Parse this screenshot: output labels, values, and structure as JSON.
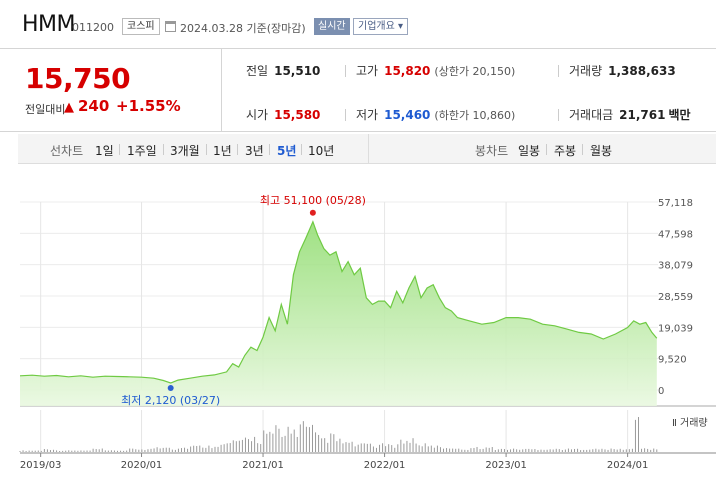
{
  "stock": {
    "name": "HMM",
    "code": "011200",
    "market": "코스피",
    "date_text": "2024.03.28 기준(장마감)",
    "realtime_label": "실시간",
    "company_label": "기업개요 ▾"
  },
  "price": {
    "current": "15,750",
    "change_label": "전일대비",
    "change_arrow": "▲",
    "change_value": "240",
    "change_pct": "+1.55%"
  },
  "stats": {
    "prev_close_label": "전일",
    "prev_close": "15,510",
    "high_label": "고가",
    "high": "15,820",
    "upper_limit": "(상한가 20,150)",
    "volume_label": "거래량",
    "volume": "1,388,633",
    "open_label": "시가",
    "open": "15,580",
    "low_label": "저가",
    "low": "15,460",
    "lower_limit": "(하한가 10,860)",
    "amount_label": "거래대금",
    "amount": "21,761",
    "amount_unit": "백만"
  },
  "periods": {
    "line_chart_label": "선차트",
    "line_buttons": [
      "1일",
      "1주일",
      "3개월",
      "1년",
      "3년",
      "5년",
      "10년"
    ],
    "active": "5년",
    "candle_chart_label": "봉차트",
    "candle_buttons": [
      "일봉",
      "주봉",
      "월봉"
    ]
  },
  "chart_data": {
    "type": "area",
    "y_ticks": [
      "57,118",
      "47,598",
      "38,079",
      "28,559",
      "19,039",
      "9,520",
      "0"
    ],
    "ylim": [
      0,
      57118
    ],
    "x_ticks": [
      "2019/03",
      "2020/01",
      "2021/01",
      "2022/01",
      "2023/01",
      "2024/01"
    ],
    "x_tick_years": [
      2019.17,
      2020.0,
      2021.0,
      2022.0,
      2023.0,
      2024.0
    ],
    "x_range": [
      2019.0,
      2024.25
    ],
    "max_annotation": "최고 51,100 (05/28)",
    "min_annotation": "최저 2,120 (03/27)",
    "max_point": {
      "x": 2021.41,
      "y": 51100
    },
    "min_point": {
      "x": 2020.24,
      "y": 2120
    },
    "volume_label": "거래량",
    "series": [
      {
        "x": [
          2019.0,
          2019.1,
          2019.2,
          2019.3,
          2019.4,
          2019.5,
          2019.6,
          2019.7,
          2019.8,
          2019.9,
          2020.0,
          2020.1,
          2020.18,
          2020.24,
          2020.3,
          2020.4,
          2020.5,
          2020.6,
          2020.7,
          2020.75,
          2020.8,
          2020.85,
          2020.9,
          2020.95,
          2021.0,
          2021.05,
          2021.1,
          2021.15,
          2021.2,
          2021.25,
          2021.3,
          2021.35,
          2021.41,
          2021.45,
          2021.5,
          2021.55,
          2021.6,
          2021.65,
          2021.7,
          2021.75,
          2021.8,
          2021.85,
          2021.9,
          2021.95,
          2022.0,
          2022.05,
          2022.1,
          2022.15,
          2022.2,
          2022.25,
          2022.3,
          2022.35,
          2022.4,
          2022.45,
          2022.5,
          2022.55,
          2022.6,
          2022.7,
          2022.8,
          2022.9,
          2023.0,
          2023.1,
          2023.2,
          2023.3,
          2023.4,
          2023.5,
          2023.6,
          2023.7,
          2023.8,
          2023.9,
          2024.0,
          2024.05,
          2024.1,
          2024.15,
          2024.2,
          2024.24
        ],
        "y": [
          4300,
          4500,
          4200,
          4400,
          4000,
          4300,
          3900,
          4200,
          4100,
          4000,
          3900,
          3600,
          2900,
          2120,
          3000,
          3600,
          4200,
          4600,
          5500,
          8000,
          7000,
          10500,
          13000,
          12000,
          16000,
          22000,
          18000,
          26000,
          20000,
          35000,
          42000,
          46000,
          51100,
          47000,
          43000,
          41000,
          42000,
          36000,
          39000,
          35000,
          37000,
          28000,
          26000,
          27000,
          27000,
          25000,
          30000,
          26500,
          31000,
          34500,
          28000,
          31000,
          32000,
          28000,
          25000,
          24000,
          22000,
          21000,
          20000,
          20500,
          22000,
          22000,
          21500,
          20000,
          19500,
          18500,
          17500,
          17000,
          15500,
          17000,
          19000,
          21000,
          20000,
          20500,
          17500,
          15750
        ]
      }
    ],
    "volume_y": [
      1,
      1,
      2,
      1,
      1,
      1,
      2,
      1,
      1,
      2,
      2,
      3,
      4,
      2,
      3,
      4,
      4,
      5,
      6,
      8,
      7,
      9,
      10,
      8,
      14,
      12,
      16,
      11,
      18,
      14,
      20,
      16,
      12,
      10,
      9,
      11,
      8,
      7,
      6,
      5,
      5,
      6,
      4,
      5,
      5,
      4,
      8,
      7,
      9,
      6,
      5,
      4,
      4,
      3,
      3,
      3,
      2,
      3,
      3,
      2,
      2,
      2,
      2,
      2,
      2,
      2,
      2,
      2,
      2,
      2,
      2,
      24,
      3,
      2,
      2,
      2
    ]
  }
}
